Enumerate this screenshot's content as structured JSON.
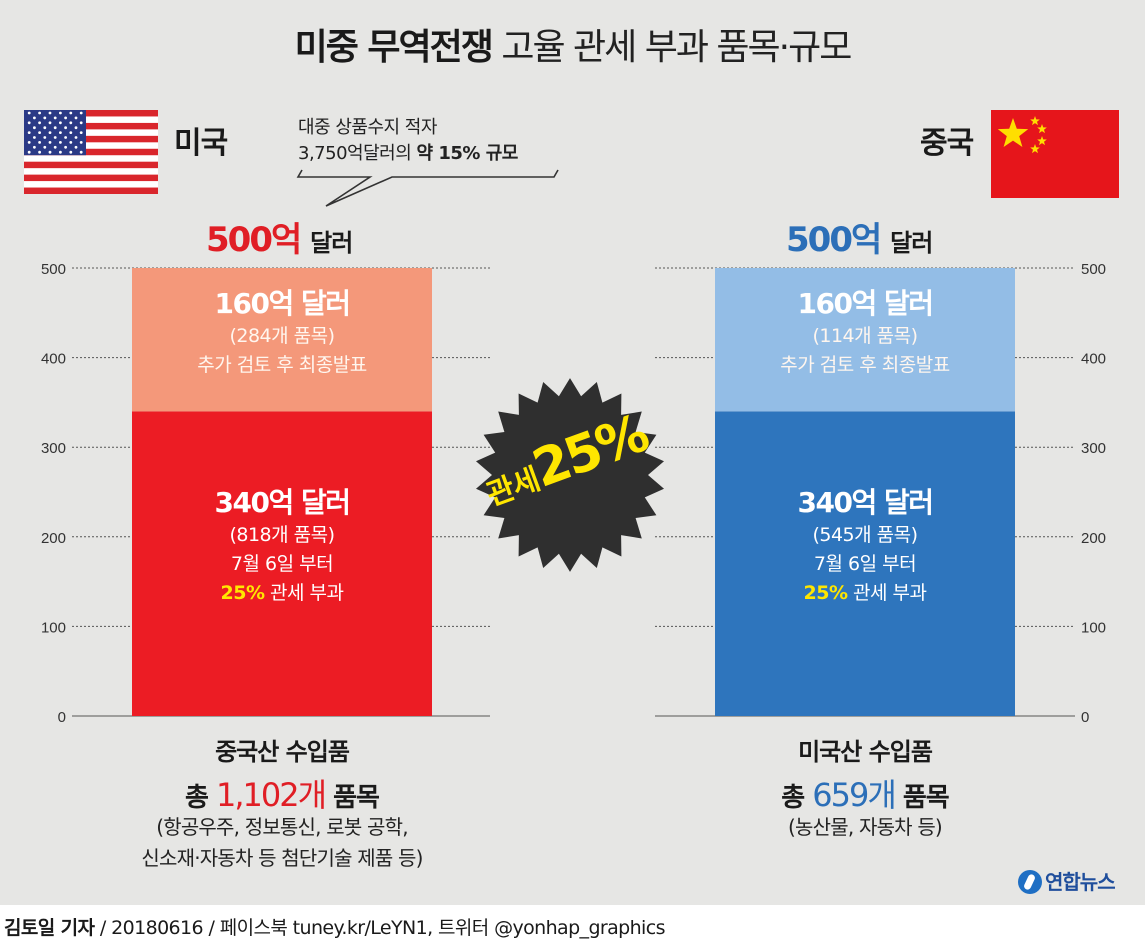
{
  "title": {
    "bold": "미중 무역전쟁",
    "light": "고율 관세 부과 품목·규모"
  },
  "countries": {
    "us": "미국",
    "cn": "중국"
  },
  "callout": {
    "line1": "대중 상품수지 적자",
    "line2_prefix": "3,750억달러의",
    "line2_emphasis": "약 15% 규모"
  },
  "totals": {
    "us": {
      "amount": "500억",
      "unit": "달러"
    },
    "cn": {
      "amount": "500억",
      "unit": "달러"
    }
  },
  "burst": {
    "label": "관세",
    "percent": "25%"
  },
  "us_upper": {
    "amount": "160억 달러",
    "items": "(284개 품목)",
    "note": "추가 검토 후 최종발표"
  },
  "us_lower": {
    "amount": "340억 달러",
    "items": "(818개 품목)",
    "date": "7월 6일 부터",
    "rate": "25%",
    "rate_suffix": "관세 부과"
  },
  "cn_upper": {
    "amount": "160억 달러",
    "items": "(114개 품목)",
    "note": "추가 검토 후 최종발표"
  },
  "cn_lower": {
    "amount": "340억 달러",
    "items": "(545개 품목)",
    "date": "7월 6일 부터",
    "rate": "25%",
    "rate_suffix": "관세 부과"
  },
  "us_footer": {
    "origin": "중국산 수입품",
    "count_prefix": "총",
    "count": "1,102개",
    "count_suffix": "품목",
    "desc_line1": "(항공우주, 정보통신, 로봇 공학,",
    "desc_line2": "신소재·자동차 등 첨단기술 제품 등)"
  },
  "cn_footer": {
    "origin": "미국산 수입품",
    "count_prefix": "총",
    "count": "659개",
    "count_suffix": "품목",
    "desc_line1": "(농산물, 자동차 등)"
  },
  "logo": "연합뉴스",
  "credit": {
    "name": "김토일 기자",
    "rest": "/ 20180616 / 페이스북 tuney.kr/LeYN1, 트위터 @yonhap_graphics"
  },
  "colors": {
    "us_upper": "#f4987a",
    "us_lower": "#ec1c24",
    "cn_upper": "#93bde6",
    "cn_lower": "#2e75bd",
    "burst": "#2f2f2f",
    "highlight": "#ffe600"
  },
  "chart_data": {
    "type": "bar",
    "stacked": true,
    "categories": [
      "미국",
      "중국"
    ],
    "series": [
      {
        "name": "340억 달러",
        "values": [
          340,
          340
        ]
      },
      {
        "name": "160억 달러",
        "values": [
          160,
          160
        ]
      }
    ],
    "ylim": [
      0,
      500
    ],
    "yticks": [
      0,
      100,
      200,
      300,
      400,
      500
    ],
    "grid": true
  }
}
